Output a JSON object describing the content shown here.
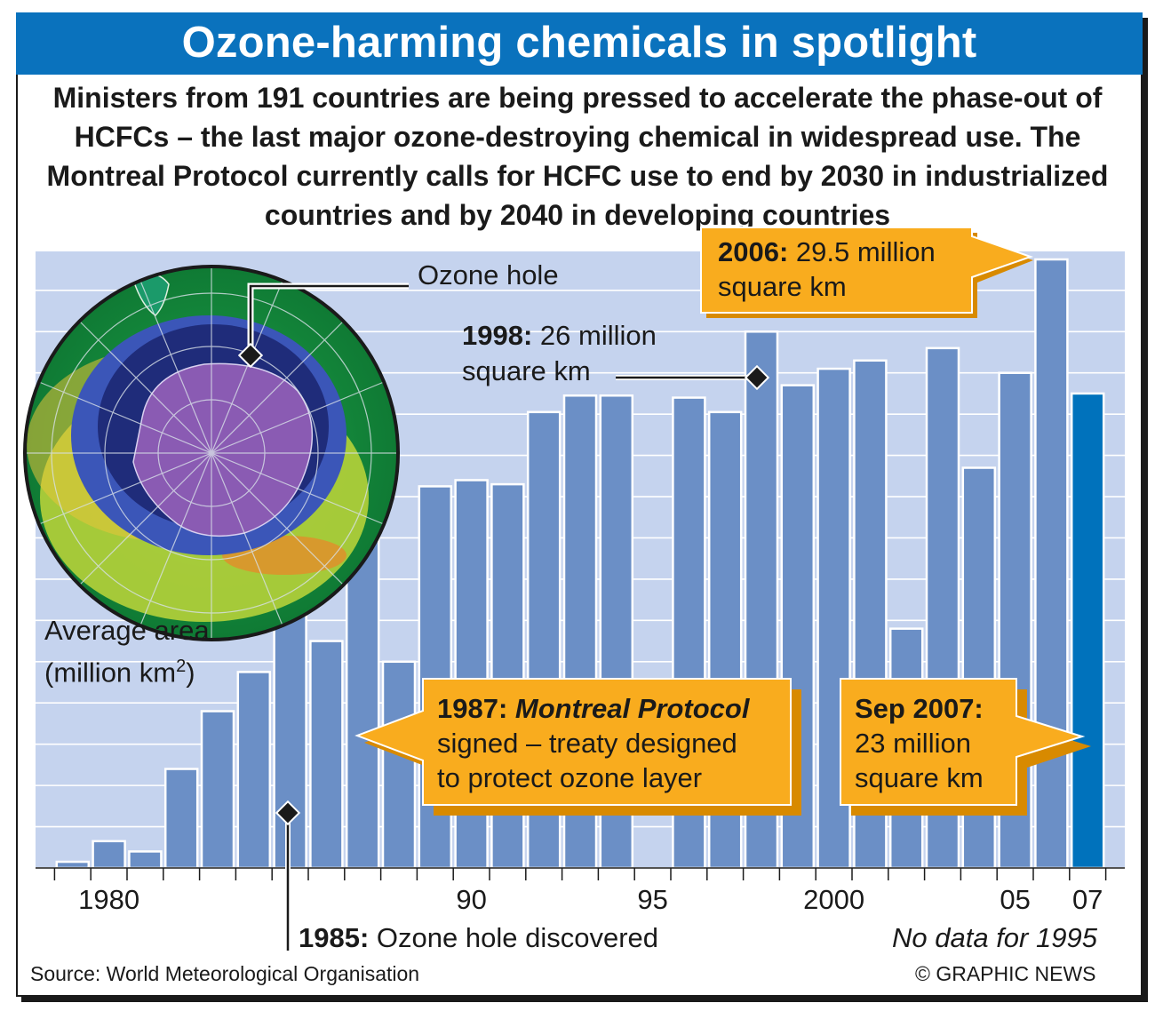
{
  "title": "Ozone-harming chemicals in spotlight",
  "intro": "Ministers from 191 countries are being pressed to accelerate the phase-out of HCFCs – the last major ozone-destroying chemical in widespread use. The Montreal Protocol currently calls for HCFC use to end by 2030 in industrialized countries and by 2040 in developing countries",
  "globe_label": "Ozone hole",
  "y_axis_label_line1": "Average area",
  "y_axis_label_line2_prefix": "(million km",
  "y_axis_label_sup": "2",
  "y_axis_label_line2_suffix": ")",
  "annotations": {
    "a1998": {
      "year": "1998:",
      "text_line1": " 26 million",
      "text_line2": "square km"
    },
    "a1985": {
      "year": "1985:",
      "text": " Ozone hole discovered"
    },
    "a2006": {
      "year": "2006:",
      "text_line1": " 29.5 million",
      "text_line2": "square km"
    },
    "a1987": {
      "year": "1987:",
      "italic": "Montreal Protocol",
      "text_line2": "signed – treaty designed",
      "text_line3": "to protect ozone layer"
    },
    "a2007": {
      "year": "Sep 2007:",
      "text_line2": "23 million",
      "text_line3": "square km"
    }
  },
  "no_data_note": "No data for 1995",
  "source": "Source: World Meteorological Organisation",
  "credit": "© GRAPHIC NEWS",
  "colors": {
    "title_bg": "#0a72bd",
    "bar": "#6b8fc6",
    "bar_highlight": "#0072bc",
    "plot_bg": "#c5d3ee",
    "callout": "#f9ac1e"
  },
  "chart_data": {
    "type": "bar",
    "title": "Ozone-harming chemicals in spotlight",
    "xlabel": "",
    "ylabel": "Average area (million km2)",
    "ylim": [
      0,
      30
    ],
    "tick_labels": [
      {
        "year": 1980,
        "label": "1980"
      },
      {
        "year": 1990,
        "label": "90"
      },
      {
        "year": 1995,
        "label": "95"
      },
      {
        "year": 2000,
        "label": "2000"
      },
      {
        "year": 2005,
        "label": "05"
      },
      {
        "year": 2007,
        "label": "07"
      }
    ],
    "categories": [
      "1979",
      "1980",
      "1981",
      "1982",
      "1983",
      "1984",
      "1985",
      "1986",
      "1987",
      "1988",
      "1989",
      "1990",
      "1991",
      "1992",
      "1993",
      "1994",
      "1996",
      "1997",
      "1998",
      "1999",
      "2000",
      "2001",
      "2002",
      "2003",
      "2004",
      "2005",
      "2006",
      "2007"
    ],
    "values": [
      0.3,
      1.3,
      0.8,
      4.8,
      7.6,
      9.5,
      14.0,
      11.0,
      18.0,
      10.0,
      18.5,
      18.8,
      18.6,
      22.1,
      22.9,
      22.9,
      22.8,
      22.1,
      26.0,
      23.4,
      24.2,
      24.6,
      11.6,
      25.2,
      19.4,
      24.0,
      29.5,
      23.0
    ],
    "highlight": "2007",
    "series": [
      {
        "name": "Average ozone hole area",
        "values": [
          0.3,
          1.3,
          0.8,
          4.8,
          7.6,
          9.5,
          14.0,
          11.0,
          18.0,
          10.0,
          18.5,
          18.8,
          18.6,
          22.1,
          22.9,
          22.9,
          22.8,
          22.1,
          26.0,
          23.4,
          24.2,
          24.6,
          11.6,
          25.2,
          19.4,
          24.0,
          29.5,
          23.0
        ]
      }
    ],
    "notes": "No data for 1995"
  }
}
